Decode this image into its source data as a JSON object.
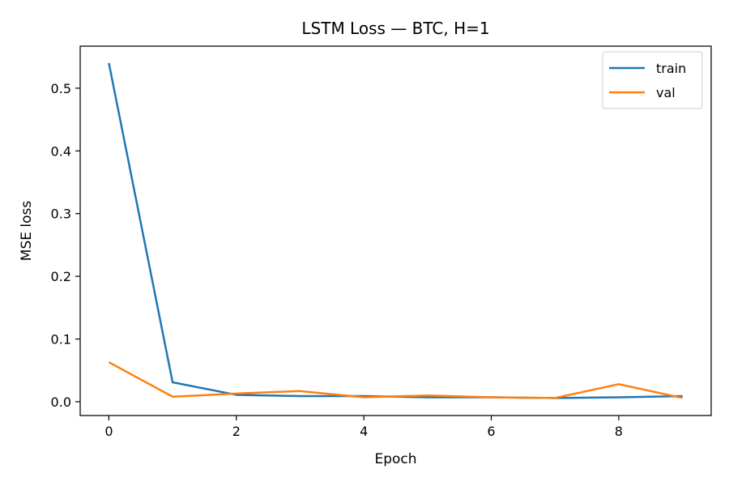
{
  "chart_data": {
    "type": "line",
    "title": "LSTM Loss — BTC, H=1",
    "xlabel": "Epoch",
    "ylabel": "MSE loss",
    "x": [
      0,
      1,
      2,
      3,
      4,
      5,
      6,
      7,
      8,
      9
    ],
    "xlim": [
      -0.45,
      9.45
    ],
    "ylim": [
      -0.022,
      0.567
    ],
    "xticks": [
      0,
      2,
      4,
      6,
      8
    ],
    "yticks": [
      0.0,
      0.1,
      0.2,
      0.3,
      0.4,
      0.5
    ],
    "xtick_labels": [
      "0",
      "2",
      "4",
      "6",
      "8"
    ],
    "ytick_labels": [
      "0.0",
      "0.1",
      "0.2",
      "0.3",
      "0.4",
      "0.5"
    ],
    "grid": false,
    "legend_position": "top-right",
    "series": [
      {
        "name": "train",
        "color": "#1f77b4",
        "values": [
          0.54,
          0.031,
          0.011,
          0.009,
          0.009,
          0.007,
          0.007,
          0.006,
          0.007,
          0.009
        ]
      },
      {
        "name": "val",
        "color": "#ff7f0e",
        "values": [
          0.063,
          0.008,
          0.013,
          0.017,
          0.007,
          0.01,
          0.007,
          0.006,
          0.028,
          0.006
        ]
      }
    ]
  }
}
